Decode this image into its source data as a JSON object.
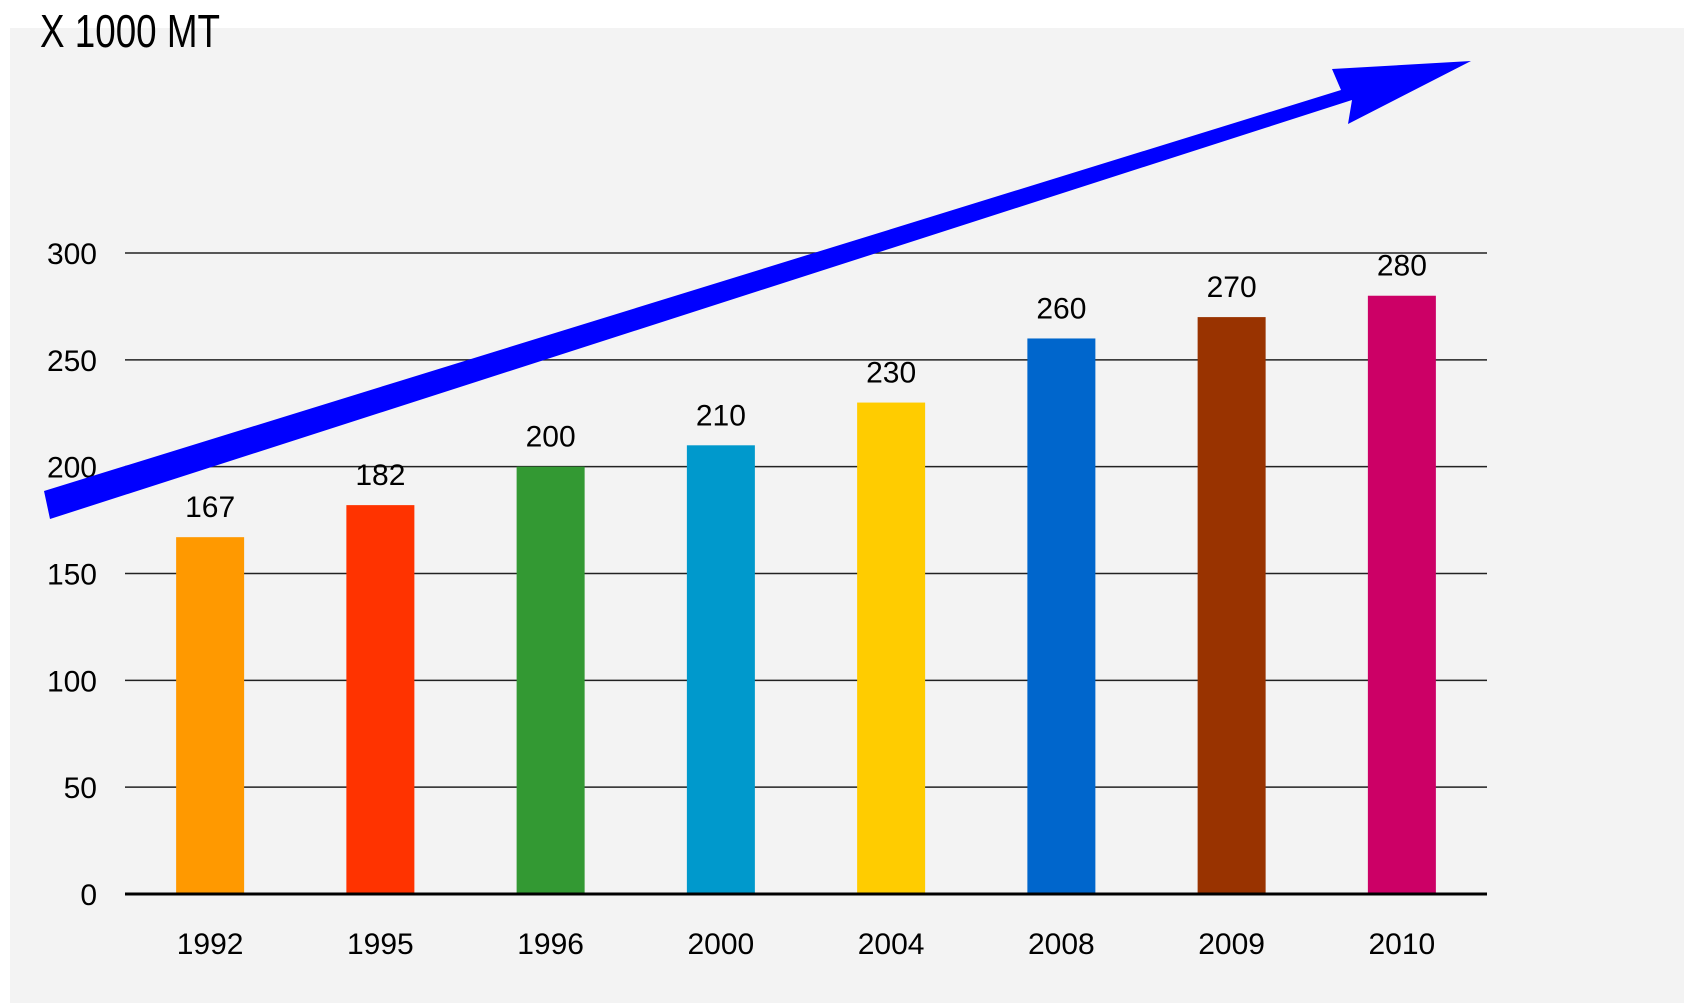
{
  "chart_data": {
    "type": "bar",
    "title": "X 1000 MT",
    "categories": [
      "1992",
      "1995",
      "1996",
      "2000",
      "2004",
      "2008",
      "2009",
      "2010"
    ],
    "values": [
      167,
      182,
      200,
      210,
      230,
      260,
      270,
      280
    ],
    "data_labels": [
      "167",
      "182",
      "200",
      "210",
      "230",
      "260",
      "270",
      "280"
    ],
    "bar_colors": [
      "#ff9900",
      "#ff3300",
      "#339933",
      "#0099cc",
      "#ffcc00",
      "#0066cc",
      "#993300",
      "#cc0066"
    ],
    "y_ticks": [
      0,
      50,
      100,
      150,
      200,
      250,
      300
    ],
    "ylim": [
      0,
      300
    ],
    "grid": true,
    "legend": "none",
    "trend_arrow": {
      "direction": "up",
      "color": "#0000ff"
    }
  }
}
